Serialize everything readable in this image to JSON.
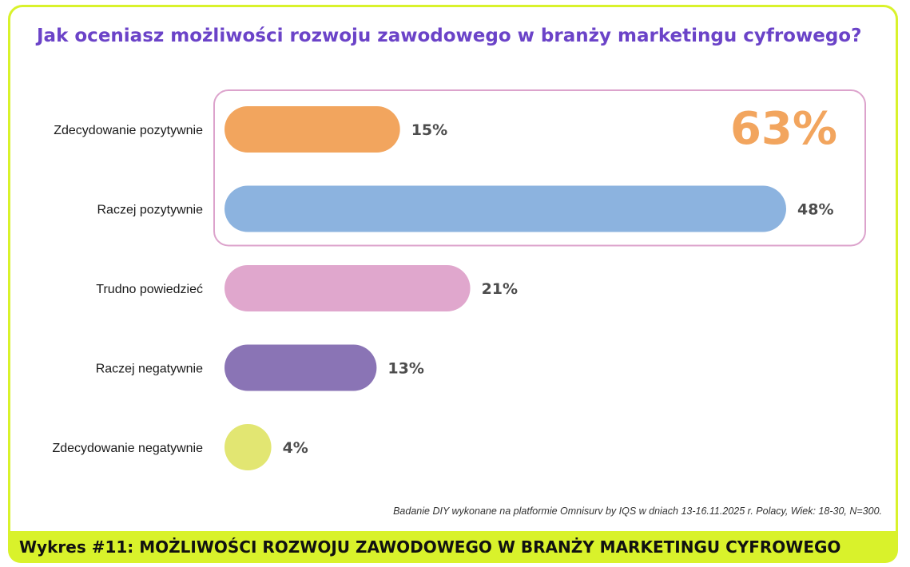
{
  "title": "Jak oceniasz możliwości rozwoju zawodowego w branży marketingu cyfrowego?",
  "source_note": "Badanie DIY wykonane na platformie Omnisurv by IQS w dniach 13-16.11.2025 r.  Polacy, Wiek: 18-30, N=300.",
  "footer": "Wykres #11: MOŻLIWOŚCI ROZWOJU ZAWODOWEGO W BRANŻY MARKETINGU CYFROWEGO",
  "chart_data": {
    "type": "bar",
    "orientation": "horizontal",
    "categories": [
      "Zdecydowanie pozytywnie",
      "Raczej pozytywnie",
      "Trudno powiedzieć",
      "Raczej negatywnie",
      "Zdecydowanie negatywnie"
    ],
    "values": [
      15,
      48,
      21,
      13,
      4
    ],
    "value_labels": [
      "15%",
      "48%",
      "21%",
      "13%",
      "4%"
    ],
    "colors": [
      "#f2a55e",
      "#8cb3df",
      "#e0a7cd",
      "#8a74b5",
      "#e2e672"
    ],
    "highlight": {
      "categories": [
        "Zdecydowanie pozytywnie",
        "Raczej pozytywnie"
      ],
      "label": "63%",
      "label_color": "#f2a55e",
      "border_color": "#dca3cc"
    },
    "xlim": [
      0,
      48
    ]
  }
}
